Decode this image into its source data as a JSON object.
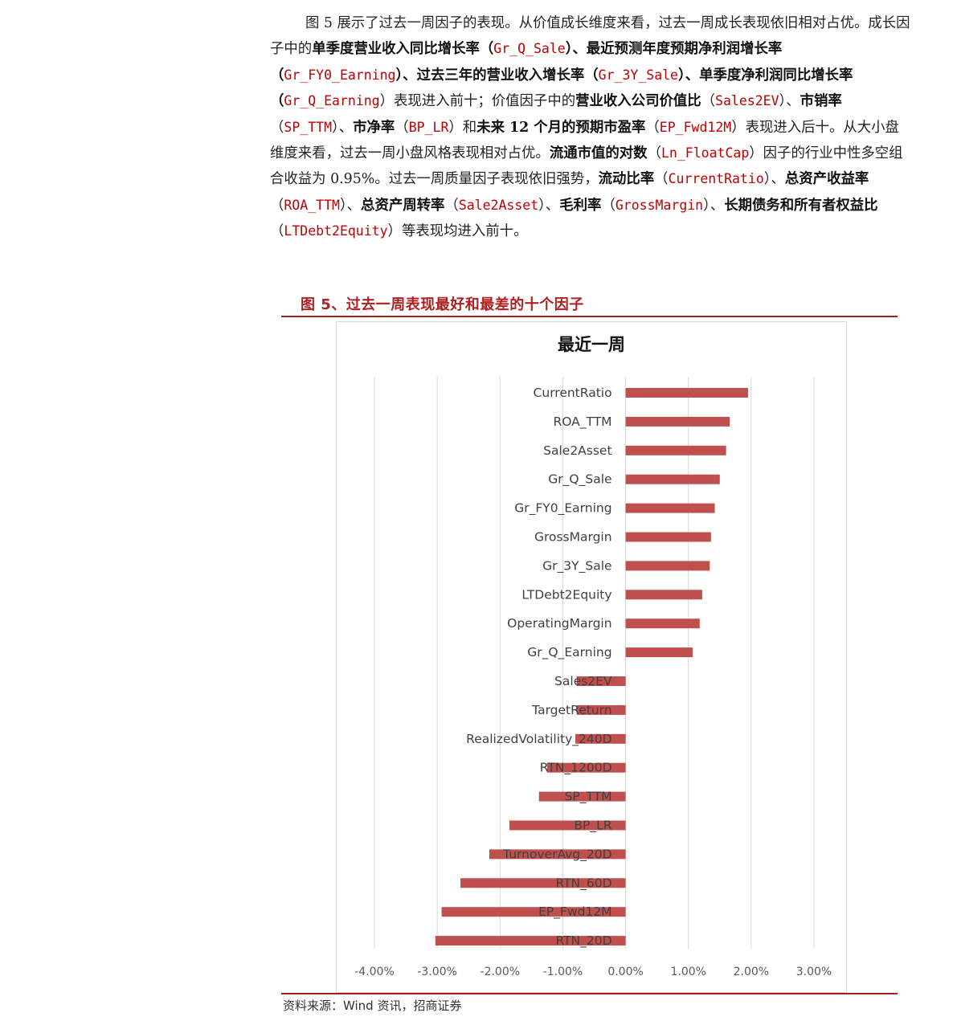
{
  "paragraph": {
    "p1": "图 5 展示了过去一周因子的表现。从价值成长维度来看，过去一周成长表现依旧相对占优。成长因子中的",
    "b1": "单季度营业收入同比增长率（",
    "r1": "Gr_Q_Sale",
    "b2": "）、最近预测年度预期净利润增长率（",
    "r2": "Gr_FY0_Earning",
    "b3": "）、过去三年的营业收入增长率（",
    "r3": "Gr_3Y_Sale",
    "b4": "）、单季度净利润同比增长率（",
    "r4": "Gr_Q_Earning",
    "p2": "）表现进入前十；价值因子中的",
    "b5": "营业收入公司价值比",
    "p3": "（",
    "r5": "Sales2EV",
    "p4": "）、",
    "b6": "市销率",
    "p5": "（",
    "r6": "SP_TTM",
    "p6": "）、",
    "b7": "市净率",
    "p7": "（",
    "r7": "BP_LR",
    "p8": "）和",
    "b8": "未来 12 个月的预期市盈率",
    "p9": "（",
    "r8": "EP_Fwd12M",
    "p10": "）表现进入后十。从大小盘维度来看，过去一周小盘风格表现相对占优。",
    "b9": "流通市值的对数",
    "p11": "（",
    "r9": "Ln_FloatCap",
    "p12": "）因子的行业中性多空组合收益为 0.95%。过去一周质量因子表现依旧强势，",
    "b10": "流动比率",
    "p13": "（",
    "r10": "CurrentRatio",
    "p14": "）、",
    "b11": "总资产收益率",
    "p15": "（",
    "r11": "ROA_TTM",
    "p16": "）、",
    "b12": "总资产周转率",
    "p17": "（",
    "r12": "Sale2Asset",
    "p18": "）、",
    "b13": "毛利率",
    "p19": "（",
    "r13": "GrossMargin",
    "p20": "）、",
    "b14": "长期债务和所有者权益比",
    "p21": "（",
    "r14": "LTDebt2Equity",
    "p22": "）等表现均进入前十。"
  },
  "figure": {
    "title": "图 5、过去一周表现最好和最差的十个因子",
    "source": "资料来源：Wind 资讯，招商证券"
  },
  "colors": {
    "bar": "#c0504d",
    "accent_red": "#c00000",
    "rule": "#a31f1f",
    "grid": "#d9d9d9"
  },
  "chart_data": {
    "type": "bar",
    "orientation": "horizontal",
    "title": "最近一周",
    "categories": [
      "CurrentRatio",
      "ROA_TTM",
      "Sale2Asset",
      "Gr_Q_Sale",
      "Gr_FY0_Earning",
      "GrossMargin",
      "Gr_3Y_Sale",
      "LTDebt2Equity",
      "OperatingMargin",
      "Gr_Q_Earning",
      "Sales2EV",
      "TargetReturn",
      "RealizedVolatility_240D",
      "RTN_1200D",
      "SP_TTM",
      "BP_LR",
      "TurnoverAvg_20D",
      "RTN_60D",
      "EP_Fwd12M",
      "RTN_20D"
    ],
    "values": [
      1.95,
      1.66,
      1.6,
      1.5,
      1.42,
      1.36,
      1.34,
      1.22,
      1.18,
      1.07,
      -0.78,
      -0.78,
      -0.8,
      -1.25,
      -1.38,
      -1.85,
      -2.17,
      -2.63,
      -2.93,
      -3.03
    ],
    "xlim": [
      -4.0,
      3.0
    ],
    "xticks": [
      "-4.00%",
      "-3.00%",
      "-2.00%",
      "-1.00%",
      "0.00%",
      "1.00%",
      "2.00%",
      "3.00%"
    ],
    "unit": "%",
    "grid": true,
    "legend": "none"
  }
}
